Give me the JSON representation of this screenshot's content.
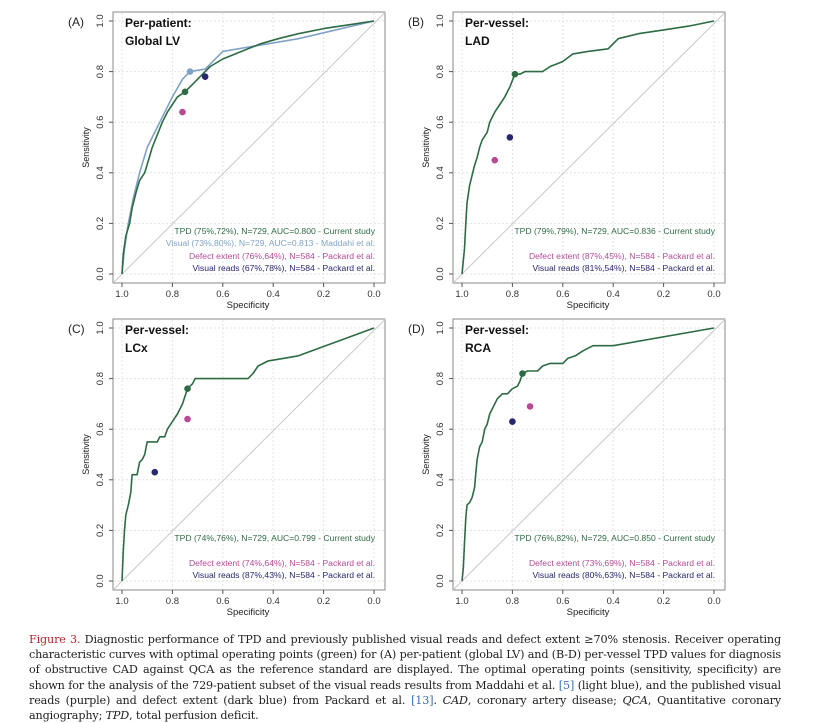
{
  "colors": {
    "tpd": "#2e6b45",
    "maddahi": "#7fa3c6",
    "defect": "#b54b96",
    "visual": "#272770",
    "diagonal": "#c8c8c8",
    "grid": "#e3e3e3",
    "axis": "#555555",
    "figlabel": "#b5262d",
    "ref": "#3a6fb0"
  },
  "chart_data": [
    {
      "type": "line",
      "panel_label": "(A)",
      "title": "Per-patient:",
      "subtitle": "Global LV",
      "xlabel": "Specificity",
      "ylabel": "Sensitivity",
      "xlim": [
        1.0,
        0.0
      ],
      "ylim": [
        0.0,
        1.0
      ],
      "xticks": [
        "1.0",
        "0.8",
        "0.6",
        "0.4",
        "0.2",
        "0.0"
      ],
      "yticks": [
        "0.0",
        "0.2",
        "0.4",
        "0.6",
        "0.8",
        "1.0"
      ],
      "grid": true,
      "series": [
        {
          "name": "TPD",
          "color_key": "tpd",
          "points": [
            [
              1.0,
              0.0
            ],
            [
              0.995,
              0.08
            ],
            [
              0.985,
              0.15
            ],
            [
              0.97,
              0.2
            ],
            [
              0.96,
              0.26
            ],
            [
              0.945,
              0.32
            ],
            [
              0.93,
              0.37
            ],
            [
              0.91,
              0.4
            ],
            [
              0.895,
              0.45
            ],
            [
              0.88,
              0.5
            ],
            [
              0.86,
              0.55
            ],
            [
              0.84,
              0.6
            ],
            [
              0.82,
              0.64
            ],
            [
              0.8,
              0.67
            ],
            [
              0.78,
              0.7
            ],
            [
              0.75,
              0.72
            ],
            [
              0.72,
              0.75
            ],
            [
              0.69,
              0.78
            ],
            [
              0.65,
              0.82
            ],
            [
              0.6,
              0.85
            ],
            [
              0.55,
              0.87
            ],
            [
              0.5,
              0.89
            ],
            [
              0.45,
              0.91
            ],
            [
              0.38,
              0.93
            ],
            [
              0.3,
              0.95
            ],
            [
              0.2,
              0.97
            ],
            [
              0.1,
              0.985
            ],
            [
              0.0,
              1.0
            ]
          ]
        },
        {
          "name": "Visual (Maddahi)",
          "color_key": "maddahi",
          "points": [
            [
              1.0,
              0.0
            ],
            [
              0.99,
              0.1
            ],
            [
              0.975,
              0.2
            ],
            [
              0.955,
              0.3
            ],
            [
              0.93,
              0.4
            ],
            [
              0.9,
              0.5
            ],
            [
              0.88,
              0.54
            ],
            [
              0.85,
              0.6
            ],
            [
              0.8,
              0.7
            ],
            [
              0.76,
              0.77
            ],
            [
              0.73,
              0.8
            ],
            [
              0.67,
              0.81
            ],
            [
              0.6,
              0.88
            ],
            [
              0.3,
              0.93
            ],
            [
              0.0,
              1.0
            ]
          ]
        }
      ],
      "points": [
        {
          "name": "TPD optimal",
          "color_key": "tpd",
          "specificity": 0.75,
          "sensitivity": 0.72
        },
        {
          "name": "Visual Maddahi",
          "color_key": "maddahi",
          "specificity": 0.73,
          "sensitivity": 0.8
        },
        {
          "name": "Defect extent Packard",
          "color_key": "defect",
          "specificity": 0.76,
          "sensitivity": 0.64
        },
        {
          "name": "Visual reads Packard",
          "color_key": "visual",
          "specificity": 0.67,
          "sensitivity": 0.78
        }
      ],
      "legend": [
        {
          "text": "TPD (75%,72%), N=729, AUC=0.800 - Current study",
          "color_key": "tpd"
        },
        {
          "text": "Visual (73%,80%), N=729, AUC=0.813 - Maddahi et al.",
          "color_key": "maddahi"
        },
        {
          "text": "Defect extent (76%,64%), N=584 - Packard et al.",
          "color_key": "defect"
        },
        {
          "text": "Visual reads  (67%,78%), N=584 - Packard et al.",
          "color_key": "visual"
        }
      ],
      "legend_placement": "bottom-right"
    },
    {
      "type": "line",
      "panel_label": "(B)",
      "title": "Per-vessel:",
      "subtitle": "LAD",
      "xlabel": "Specificity",
      "ylabel": "Sensitivity",
      "xlim": [
        1.0,
        0.0
      ],
      "ylim": [
        0.0,
        1.0
      ],
      "xticks": [
        "1.0",
        "0.8",
        "0.6",
        "0.4",
        "0.2",
        "0.0"
      ],
      "yticks": [
        "0.0",
        "0.2",
        "0.4",
        "0.6",
        "0.8",
        "1.0"
      ],
      "grid": true,
      "series": [
        {
          "name": "TPD",
          "color_key": "tpd",
          "points": [
            [
              1.0,
              0.0
            ],
            [
              0.99,
              0.1
            ],
            [
              0.985,
              0.2
            ],
            [
              0.98,
              0.28
            ],
            [
              0.97,
              0.35
            ],
            [
              0.96,
              0.39
            ],
            [
              0.95,
              0.43
            ],
            [
              0.94,
              0.46
            ],
            [
              0.93,
              0.5
            ],
            [
              0.92,
              0.53
            ],
            [
              0.9,
              0.56
            ],
            [
              0.89,
              0.6
            ],
            [
              0.87,
              0.64
            ],
            [
              0.85,
              0.67
            ],
            [
              0.83,
              0.7
            ],
            [
              0.81,
              0.74
            ],
            [
              0.79,
              0.79
            ],
            [
              0.77,
              0.79
            ],
            [
              0.75,
              0.8
            ],
            [
              0.68,
              0.8
            ],
            [
              0.65,
              0.82
            ],
            [
              0.6,
              0.84
            ],
            [
              0.56,
              0.87
            ],
            [
              0.5,
              0.88
            ],
            [
              0.42,
              0.89
            ],
            [
              0.38,
              0.93
            ],
            [
              0.34,
              0.94
            ],
            [
              0.3,
              0.95
            ],
            [
              0.2,
              0.965
            ],
            [
              0.1,
              0.98
            ],
            [
              0.0,
              1.0
            ]
          ]
        }
      ],
      "points": [
        {
          "name": "TPD optimal",
          "color_key": "tpd",
          "specificity": 0.79,
          "sensitivity": 0.79
        },
        {
          "name": "Defect extent Packard",
          "color_key": "defect",
          "specificity": 0.87,
          "sensitivity": 0.45
        },
        {
          "name": "Visual reads Packard",
          "color_key": "visual",
          "specificity": 0.81,
          "sensitivity": 0.54
        }
      ],
      "legend": [
        {
          "text": "TPD (79%,79%), N=729, AUC=0.836 - Current study",
          "color_key": "tpd"
        },
        {
          "text": "",
          "color_key": "tpd"
        },
        {
          "text": "Defect extent (87%,45%), N=584 - Packard et al.",
          "color_key": "defect"
        },
        {
          "text": "Visual reads (81%,54%), N=584 - Packard et al.",
          "color_key": "visual"
        }
      ],
      "legend_placement": "bottom-right"
    },
    {
      "type": "line",
      "panel_label": "(C)",
      "title": "Per-vessel:",
      "subtitle": "LCx",
      "xlabel": "Specificity",
      "ylabel": "Sensitivity",
      "xlim": [
        1.0,
        0.0
      ],
      "ylim": [
        0.0,
        1.0
      ],
      "xticks": [
        "1.0",
        "0.8",
        "0.6",
        "0.4",
        "0.2",
        "0.0"
      ],
      "yticks": [
        "0.0",
        "0.2",
        "0.4",
        "0.6",
        "0.8",
        "1.0"
      ],
      "grid": true,
      "series": [
        {
          "name": "TPD",
          "color_key": "tpd",
          "points": [
            [
              1.0,
              0.0
            ],
            [
              0.995,
              0.12
            ],
            [
              0.99,
              0.2
            ],
            [
              0.985,
              0.26
            ],
            [
              0.975,
              0.3
            ],
            [
              0.965,
              0.35
            ],
            [
              0.96,
              0.42
            ],
            [
              0.94,
              0.42
            ],
            [
              0.93,
              0.47
            ],
            [
              0.92,
              0.48
            ],
            [
              0.91,
              0.5
            ],
            [
              0.9,
              0.55
            ],
            [
              0.86,
              0.55
            ],
            [
              0.85,
              0.57
            ],
            [
              0.83,
              0.57
            ],
            [
              0.82,
              0.6
            ],
            [
              0.8,
              0.63
            ],
            [
              0.78,
              0.66
            ],
            [
              0.76,
              0.7
            ],
            [
              0.75,
              0.73
            ],
            [
              0.74,
              0.76
            ],
            [
              0.72,
              0.78
            ],
            [
              0.71,
              0.8
            ],
            [
              0.6,
              0.8
            ],
            [
              0.5,
              0.8
            ],
            [
              0.48,
              0.82
            ],
            [
              0.46,
              0.85
            ],
            [
              0.42,
              0.87
            ],
            [
              0.36,
              0.88
            ],
            [
              0.3,
              0.89
            ],
            [
              0.0,
              1.0
            ]
          ]
        }
      ],
      "points": [
        {
          "name": "TPD optimal",
          "color_key": "tpd",
          "specificity": 0.74,
          "sensitivity": 0.76
        },
        {
          "name": "Defect extent Packard",
          "color_key": "defect",
          "specificity": 0.74,
          "sensitivity": 0.64
        },
        {
          "name": "Visual reads Packard",
          "color_key": "visual",
          "specificity": 0.87,
          "sensitivity": 0.43
        }
      ],
      "legend": [
        {
          "text": "TPD (74%,76%), N=729, AUC=0.799 - Current study",
          "color_key": "tpd"
        },
        {
          "text": "",
          "color_key": "tpd"
        },
        {
          "text": "Defect extent (74%,64%), N=584 - Packard et al.",
          "color_key": "defect"
        },
        {
          "text": "Visual reads (87%,43%), N=584 - Packard et al.",
          "color_key": "visual"
        }
      ],
      "legend_placement": "bottom-right"
    },
    {
      "type": "line",
      "panel_label": "(D)",
      "title": "Per-vessel:",
      "subtitle": "RCA",
      "xlabel": "Specificity",
      "ylabel": "Sensitivity",
      "xlim": [
        1.0,
        0.0
      ],
      "ylim": [
        0.0,
        1.0
      ],
      "xticks": [
        "1.0",
        "0.8",
        "0.6",
        "0.4",
        "0.2",
        "0.0"
      ],
      "yticks": [
        "0.0",
        "0.2",
        "0.4",
        "0.6",
        "0.8",
        "1.0"
      ],
      "grid": true,
      "series": [
        {
          "name": "TPD",
          "color_key": "tpd",
          "points": [
            [
              1.0,
              0.0
            ],
            [
              0.995,
              0.05
            ],
            [
              0.99,
              0.15
            ],
            [
              0.985,
              0.25
            ],
            [
              0.98,
              0.3
            ],
            [
              0.97,
              0.31
            ],
            [
              0.96,
              0.33
            ],
            [
              0.95,
              0.37
            ],
            [
              0.945,
              0.43
            ],
            [
              0.94,
              0.48
            ],
            [
              0.93,
              0.53
            ],
            [
              0.92,
              0.55
            ],
            [
              0.91,
              0.6
            ],
            [
              0.9,
              0.62
            ],
            [
              0.89,
              0.66
            ],
            [
              0.88,
              0.68
            ],
            [
              0.87,
              0.7
            ],
            [
              0.86,
              0.72
            ],
            [
              0.84,
              0.74
            ],
            [
              0.82,
              0.74
            ],
            [
              0.8,
              0.76
            ],
            [
              0.78,
              0.77
            ],
            [
              0.77,
              0.79
            ],
            [
              0.76,
              0.82
            ],
            [
              0.74,
              0.83
            ],
            [
              0.7,
              0.83
            ],
            [
              0.68,
              0.85
            ],
            [
              0.65,
              0.86
            ],
            [
              0.6,
              0.86
            ],
            [
              0.58,
              0.88
            ],
            [
              0.55,
              0.89
            ],
            [
              0.52,
              0.91
            ],
            [
              0.48,
              0.93
            ],
            [
              0.4,
              0.93
            ],
            [
              0.0,
              1.0
            ]
          ]
        }
      ],
      "points": [
        {
          "name": "TPD optimal",
          "color_key": "tpd",
          "specificity": 0.76,
          "sensitivity": 0.82
        },
        {
          "name": "Defect extent Packard",
          "color_key": "defect",
          "specificity": 0.73,
          "sensitivity": 0.69
        },
        {
          "name": "Visual reads Packard",
          "color_key": "visual",
          "specificity": 0.8,
          "sensitivity": 0.63
        }
      ],
      "legend": [
        {
          "text": "TPD (76%,82%), N=729, AUC=0.850 - Current study",
          "color_key": "tpd"
        },
        {
          "text": "",
          "color_key": "tpd"
        },
        {
          "text": "Defect extent (73%,69%), N=584 - Packard et al.",
          "color_key": "defect"
        },
        {
          "text": "Visual reads (80%,63%), N=584 - Packard et al.",
          "color_key": "visual"
        }
      ],
      "legend_placement": "bottom-right"
    }
  ],
  "caption": {
    "figure_label": "Figure 3.",
    "part1": " Diagnostic performance of TPD and previously published visual reads and defect extent ≥70% stenosis. Receiver operating characteristic curves with optimal operating points (green) for (A) per-patient (global LV) and (B-D) per-vessel TPD values for diagnosis of obstructive CAD against QCA as the reference standard are displayed. The optimal operating points (sensitivity, specificity) are shown for the analysis of the 729-patient subset of the visual reads results from Maddahi et al. ",
    "ref1": "[5]",
    "part2": " (light blue), and the published visual reads (purple) and defect extent (dark blue) from Packard et al. ",
    "ref2": "[13]",
    "part3": ". ",
    "abbr1": "CAD",
    "part4": ", coronary artery disease; ",
    "abbr2": "QCA",
    "part5": ", Quantitative coronary angiography; ",
    "abbr3": "TPD",
    "part6": ", total perfusion deficit."
  }
}
